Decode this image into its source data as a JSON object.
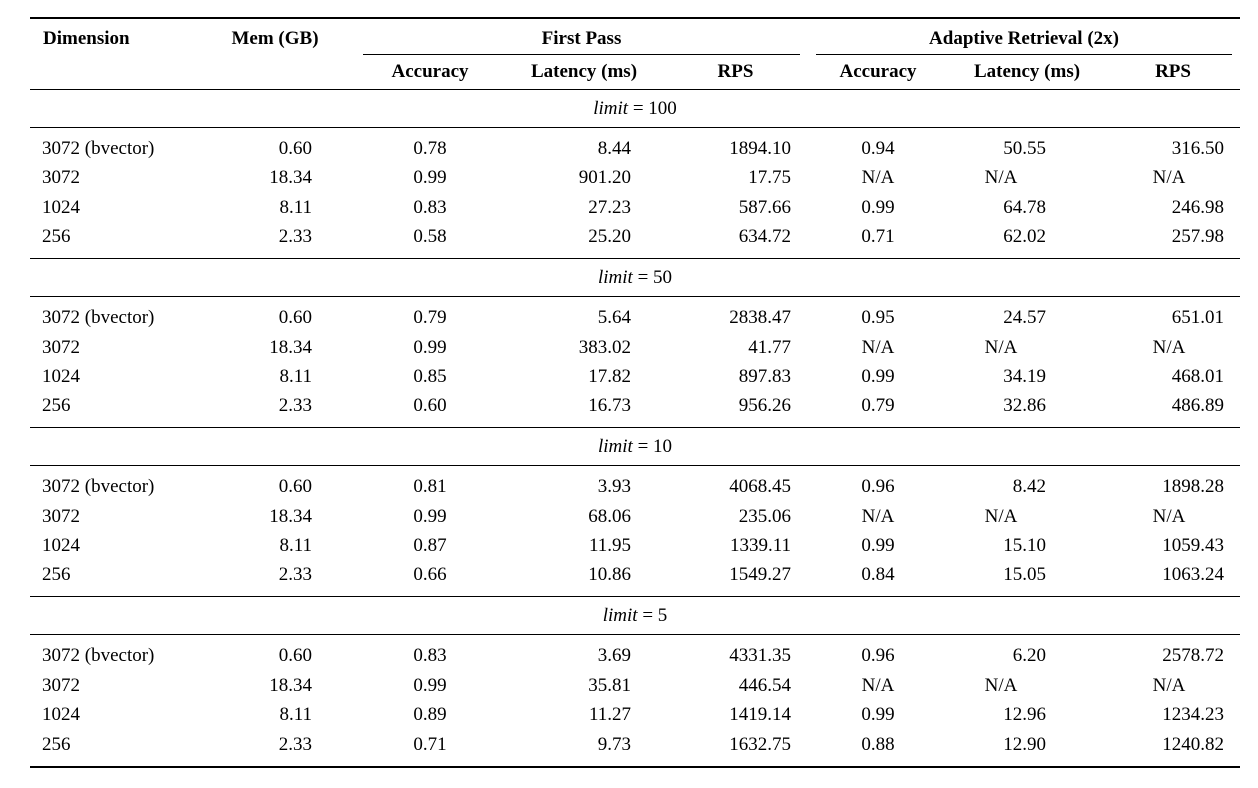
{
  "table": {
    "na_label": "N/A",
    "columns": {
      "dimension": "Dimension",
      "mem": "Mem (GB)",
      "group_first_pass": "First Pass",
      "group_adaptive": "Adaptive Retrieval (2x)",
      "sub": [
        "Accuracy",
        "Latency (ms)",
        "RPS",
        "Accuracy",
        "Latency (ms)",
        "RPS"
      ]
    },
    "sections": [
      {
        "limit_var": "limit",
        "eq": "=",
        "limit_value": "100",
        "rows": [
          [
            "3072 (bvector)",
            "0.60",
            "0.78",
            "8.44",
            "1894.10",
            "0.94",
            "50.55",
            "316.50"
          ],
          [
            "3072",
            "18.34",
            "0.99",
            "901.20",
            "17.75",
            "N/A",
            "N/A",
            "N/A"
          ],
          [
            "1024",
            "8.11",
            "0.83",
            "27.23",
            "587.66",
            "0.99",
            "64.78",
            "246.98"
          ],
          [
            "256",
            "2.33",
            "0.58",
            "25.20",
            "634.72",
            "0.71",
            "62.02",
            "257.98"
          ]
        ]
      },
      {
        "limit_var": "limit",
        "eq": "=",
        "limit_value": "50",
        "rows": [
          [
            "3072 (bvector)",
            "0.60",
            "0.79",
            "5.64",
            "2838.47",
            "0.95",
            "24.57",
            "651.01"
          ],
          [
            "3072",
            "18.34",
            "0.99",
            "383.02",
            "41.77",
            "N/A",
            "N/A",
            "N/A"
          ],
          [
            "1024",
            "8.11",
            "0.85",
            "17.82",
            "897.83",
            "0.99",
            "34.19",
            "468.01"
          ],
          [
            "256",
            "2.33",
            "0.60",
            "16.73",
            "956.26",
            "0.79",
            "32.86",
            "486.89"
          ]
        ]
      },
      {
        "limit_var": "limit",
        "eq": "=",
        "limit_value": "10",
        "rows": [
          [
            "3072 (bvector)",
            "0.60",
            "0.81",
            "3.93",
            "4068.45",
            "0.96",
            "8.42",
            "1898.28"
          ],
          [
            "3072",
            "18.34",
            "0.99",
            "68.06",
            "235.06",
            "N/A",
            "N/A",
            "N/A"
          ],
          [
            "1024",
            "8.11",
            "0.87",
            "11.95",
            "1339.11",
            "0.99",
            "15.10",
            "1059.43"
          ],
          [
            "256",
            "2.33",
            "0.66",
            "10.86",
            "1549.27",
            "0.84",
            "15.05",
            "1063.24"
          ]
        ]
      },
      {
        "limit_var": "limit",
        "eq": "=",
        "limit_value": "5",
        "rows": [
          [
            "3072 (bvector)",
            "0.60",
            "0.83",
            "3.69",
            "4331.35",
            "0.96",
            "6.20",
            "2578.72"
          ],
          [
            "3072",
            "18.34",
            "0.99",
            "35.81",
            "446.54",
            "N/A",
            "N/A",
            "N/A"
          ],
          [
            "1024",
            "8.11",
            "0.89",
            "11.27",
            "1419.14",
            "0.99",
            "12.96",
            "1234.23"
          ],
          [
            "256",
            "2.33",
            "0.71",
            "9.73",
            "1632.75",
            "0.88",
            "12.90",
            "1240.82"
          ]
        ]
      }
    ]
  }
}
